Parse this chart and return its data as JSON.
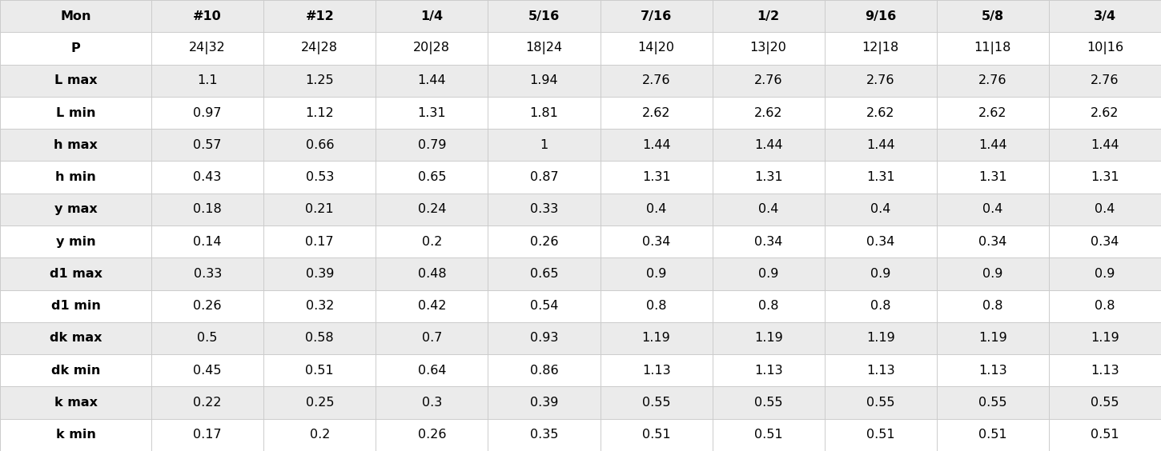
{
  "columns": [
    "Mon",
    "#10",
    "#12",
    "1/4",
    "5/16",
    "7/16",
    "1/2",
    "9/16",
    "5/8",
    "3/4"
  ],
  "rows": [
    [
      "P",
      "24|32",
      "24|28",
      "20|28",
      "18|24",
      "14|20",
      "13|20",
      "12|18",
      "11|18",
      "10|16"
    ],
    [
      "L max",
      "1.1",
      "1.25",
      "1.44",
      "1.94",
      "2.76",
      "2.76",
      "2.76",
      "2.76",
      "2.76"
    ],
    [
      "L min",
      "0.97",
      "1.12",
      "1.31",
      "1.81",
      "2.62",
      "2.62",
      "2.62",
      "2.62",
      "2.62"
    ],
    [
      "h max",
      "0.57",
      "0.66",
      "0.79",
      "1",
      "1.44",
      "1.44",
      "1.44",
      "1.44",
      "1.44"
    ],
    [
      "h min",
      "0.43",
      "0.53",
      "0.65",
      "0.87",
      "1.31",
      "1.31",
      "1.31",
      "1.31",
      "1.31"
    ],
    [
      "y max",
      "0.18",
      "0.21",
      "0.24",
      "0.33",
      "0.4",
      "0.4",
      "0.4",
      "0.4",
      "0.4"
    ],
    [
      "y min",
      "0.14",
      "0.17",
      "0.2",
      "0.26",
      "0.34",
      "0.34",
      "0.34",
      "0.34",
      "0.34"
    ],
    [
      "d1 max",
      "0.33",
      "0.39",
      "0.48",
      "0.65",
      "0.9",
      "0.9",
      "0.9",
      "0.9",
      "0.9"
    ],
    [
      "d1 min",
      "0.26",
      "0.32",
      "0.42",
      "0.54",
      "0.8",
      "0.8",
      "0.8",
      "0.8",
      "0.8"
    ],
    [
      "dk max",
      "0.5",
      "0.58",
      "0.7",
      "0.93",
      "1.19",
      "1.19",
      "1.19",
      "1.19",
      "1.19"
    ],
    [
      "dk min",
      "0.45",
      "0.51",
      "0.64",
      "0.86",
      "1.13",
      "1.13",
      "1.13",
      "1.13",
      "1.13"
    ],
    [
      "k max",
      "0.22",
      "0.25",
      "0.3",
      "0.39",
      "0.55",
      "0.55",
      "0.55",
      "0.55",
      "0.55"
    ],
    [
      "k min",
      "0.17",
      "0.2",
      "0.26",
      "0.35",
      "0.51",
      "0.51",
      "0.51",
      "0.51",
      "0.51"
    ]
  ],
  "bg_white": "#ffffff",
  "bg_gray": "#ebebeb",
  "grid_color": "#cccccc",
  "text_color": "#000000",
  "figsize": [
    14.5,
    5.64
  ],
  "dpi": 100,
  "fontsize": 11.5,
  "col_widths_raw": [
    1.35,
    1.0,
    1.0,
    1.0,
    1.0,
    1.0,
    1.0,
    1.0,
    1.0,
    1.0
  ]
}
